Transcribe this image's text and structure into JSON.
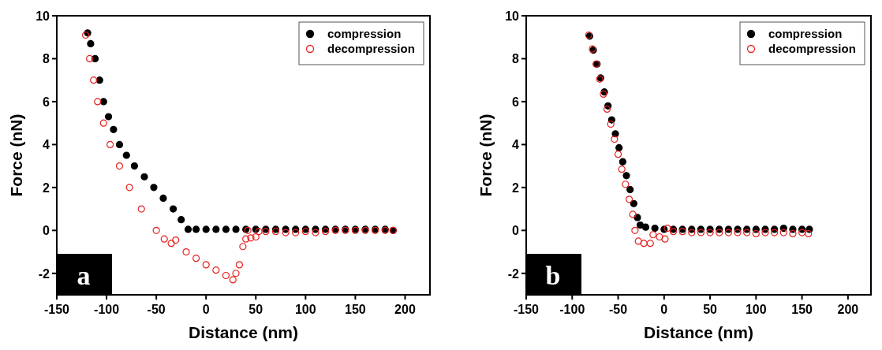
{
  "chart_data": [
    {
      "type": "scatter",
      "xlabel": "Distance (nm)",
      "ylabel": "Force (nN)",
      "xlim": [
        -150,
        225
      ],
      "ylim": [
        -3,
        10
      ],
      "xticks": [
        -150,
        -100,
        -50,
        0,
        50,
        100,
        150,
        200
      ],
      "yticks": [
        -2,
        0,
        2,
        4,
        6,
        8,
        10
      ],
      "legend": "top right",
      "marker": "circle",
      "annotations": [
        "a"
      ],
      "series": [
        {
          "name": "compression",
          "color": "#000000",
          "x": [
            -119,
            -116,
            -111.5,
            -107,
            -103,
            -98,
            -93,
            -87,
            -80,
            -72,
            -62,
            -52.5,
            -43,
            -33,
            -25,
            -18,
            -10,
            0,
            10,
            20,
            30,
            40,
            50,
            60,
            70,
            80,
            90,
            100,
            110,
            120,
            130,
            140,
            150,
            160,
            170,
            180,
            188
          ],
          "values": [
            9.2,
            8.7,
            8,
            7,
            6,
            5.3,
            4.7,
            4,
            3.5,
            3,
            2.5,
            2,
            1.5,
            1,
            0.5,
            0.05,
            0.05,
            0.05,
            0.05,
            0.05,
            0.05,
            0.05,
            0.05,
            0.05,
            0.05,
            0.05,
            0.05,
            0.05,
            0.05,
            0.05,
            0.05,
            0.05,
            0.05,
            0.05,
            0.05,
            0.05,
            0
          ]
        },
        {
          "name": "decompression",
          "color": "#e8201f",
          "x": [
            -121,
            -117,
            -113,
            -109,
            -103,
            -96.4,
            -87,
            -77,
            -65,
            -50,
            -42,
            -35,
            -30.5,
            -20,
            -10,
            0,
            10,
            20,
            27,
            30,
            33.5,
            37,
            40,
            42,
            45,
            50,
            53,
            60,
            70,
            80,
            90,
            100,
            110,
            120,
            130,
            140,
            150,
            160,
            170,
            180,
            188
          ],
          "values": [
            9.1,
            8,
            7,
            6,
            5,
            4,
            3,
            2,
            1,
            0,
            -0.4,
            -0.6,
            -0.45,
            -1,
            -1.3,
            -1.6,
            -1.85,
            -2.1,
            -2.3,
            -2,
            -1.6,
            -0.75,
            -0.4,
            0,
            -0.35,
            -0.3,
            -0.05,
            -0.05,
            -0.05,
            -0.1,
            -0.1,
            -0.05,
            -0.1,
            -0.05,
            0,
            0,
            0,
            0,
            0,
            0,
            0
          ]
        }
      ]
    },
    {
      "type": "scatter",
      "xlabel": "Distance (nm)",
      "ylabel": "Force (nN)",
      "xlim": [
        -150,
        225
      ],
      "ylim": [
        -3,
        10
      ],
      "xticks": [
        -150,
        -100,
        -50,
        0,
        50,
        100,
        150,
        200
      ],
      "yticks": [
        -2,
        0,
        2,
        4,
        6,
        8,
        10
      ],
      "legend": "top right",
      "marker": "circle",
      "annotations": [
        "b"
      ],
      "series": [
        {
          "name": "compression",
          "color": "#000000",
          "x": [
            -81,
            -77,
            -73,
            -69,
            -65,
            -61,
            -57,
            -53,
            -49,
            -45,
            -41,
            -37,
            -33,
            -29,
            -26,
            -20,
            -10,
            0,
            10,
            20,
            30,
            40,
            50,
            60,
            70,
            80,
            90,
            100,
            110,
            120,
            130,
            140,
            150,
            158
          ],
          "values": [
            9.05,
            8.4,
            7.75,
            7.1,
            6.45,
            5.8,
            5.15,
            4.5,
            3.85,
            3.2,
            2.55,
            1.9,
            1.25,
            0.6,
            0.25,
            0.15,
            0.1,
            0.05,
            0.05,
            0.05,
            0.05,
            0.05,
            0.05,
            0.05,
            0.05,
            0.05,
            0.05,
            0.05,
            0.05,
            0.05,
            0.1,
            0.05,
            0.05,
            0.05
          ]
        },
        {
          "name": "decompression",
          "color": "#e8201f",
          "x": [
            -82,
            -78,
            -74,
            -70,
            -66,
            -62,
            -58,
            -54,
            -50,
            -46,
            -42,
            -38,
            -34,
            -31.7,
            -28,
            -22,
            -15,
            -12,
            -5,
            1,
            3.6,
            10,
            20,
            30,
            40,
            50,
            60,
            70,
            80,
            90,
            100,
            110,
            120,
            130,
            140,
            150,
            157
          ],
          "values": [
            9.1,
            8.45,
            7.75,
            7.05,
            6.35,
            5.65,
            4.95,
            4.25,
            3.55,
            2.85,
            2.15,
            1.45,
            0.75,
            0,
            -0.5,
            -0.6,
            -0.6,
            -0.2,
            -0.3,
            -0.4,
            0.1,
            -0.05,
            -0.05,
            -0.1,
            -0.1,
            -0.1,
            -0.1,
            -0.1,
            -0.1,
            -0.1,
            -0.15,
            -0.1,
            -0.1,
            -0.1,
            -0.15,
            -0.1,
            -0.15
          ]
        }
      ]
    }
  ]
}
